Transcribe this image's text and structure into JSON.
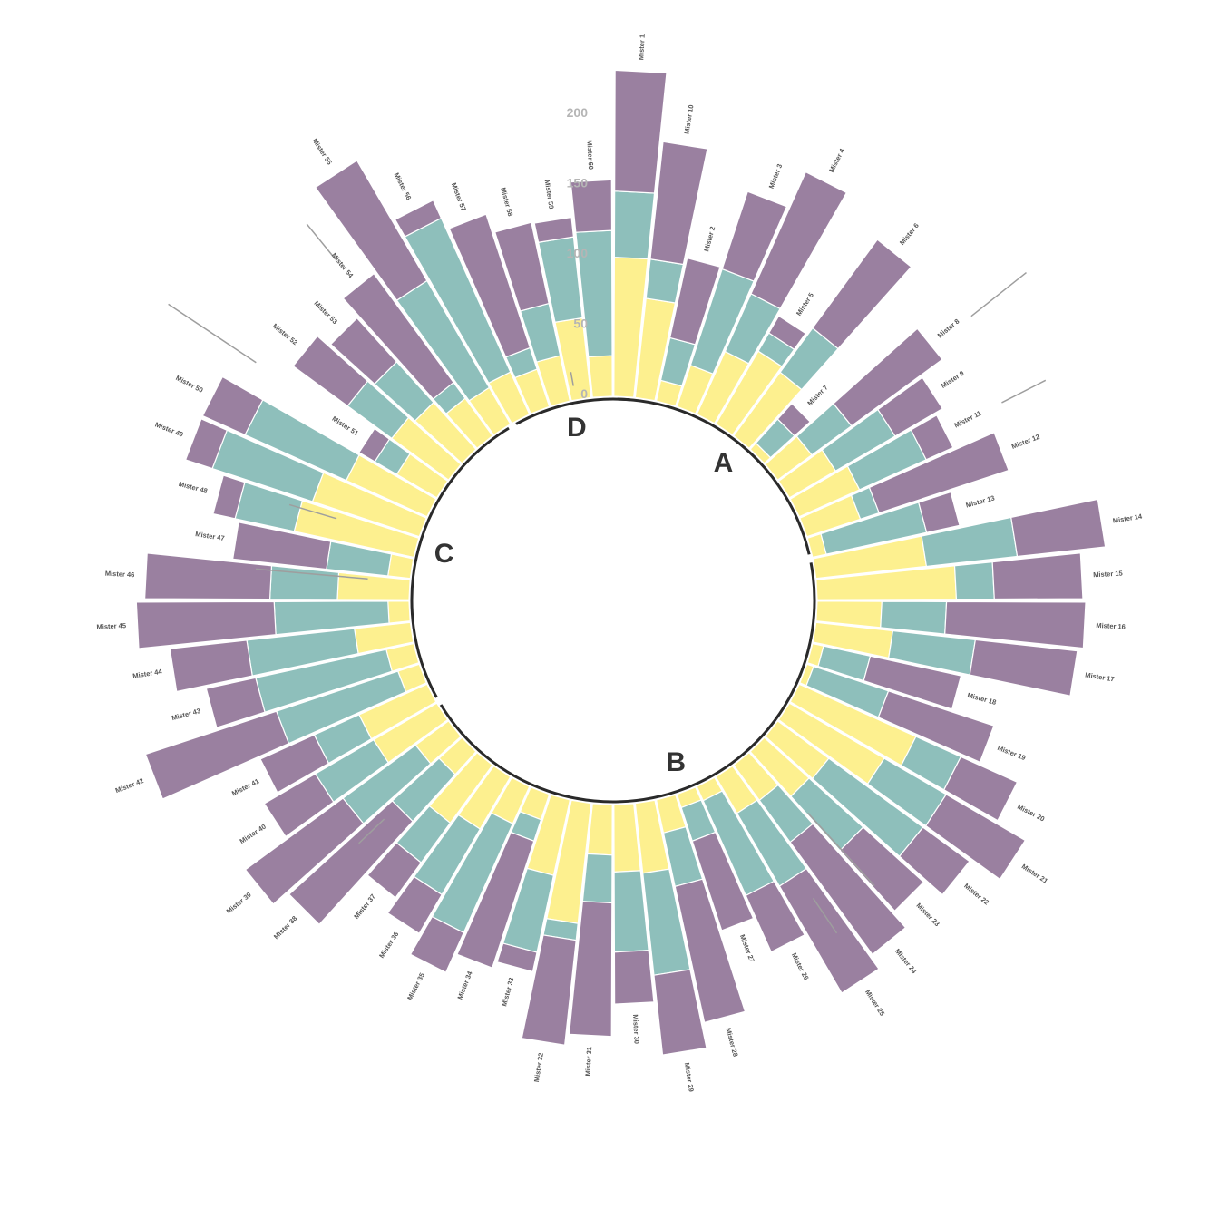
{
  "chart_data": {
    "type": "stacked-circular-bar",
    "series": [
      {
        "name": "",
        "color": "#fdf08f"
      },
      {
        "name": "",
        "color": "#8ebfbb"
      },
      {
        "name": "",
        "color": "#9a80a0"
      }
    ],
    "ticks": [
      "0",
      "50",
      "100",
      "150",
      "200"
    ],
    "groups": [
      {
        "name": "A",
        "start": 1,
        "end": 13
      },
      {
        "name": "B",
        "start": 14,
        "end": 40
      },
      {
        "name": "C",
        "start": 41,
        "end": 55
      },
      {
        "name": "D",
        "start": 56,
        "end": 61
      }
    ],
    "individuals": [
      {
        "label": "Mister 1",
        "values": [
          99,
          47,
          86
        ]
      },
      {
        "label": "Mister 10",
        "values": [
          71,
          28,
          84
        ]
      },
      {
        "label": "Mister 2",
        "values": [
          15,
          31,
          58
        ]
      },
      {
        "label": "Mister 3",
        "values": [
          31,
          72,
          58
        ]
      },
      {
        "label": "Mister 4",
        "values": [
          49,
          45,
          95
        ]
      },
      {
        "label": "Mister 5",
        "values": [
          60,
          15,
          14
        ]
      },
      {
        "label": "Mister 6",
        "values": [
          56,
          39,
          78
        ]
      },
      {
        "label": "Mister 7",
        "values": [
          6,
          23,
          15
        ]
      },
      {
        "label": "Mister 8",
        "values": [
          30,
          35,
          80
        ]
      },
      {
        "label": "Mister 9",
        "values": [
          38,
          49,
          39
        ]
      },
      {
        "label": "Mister 11",
        "values": [
          47,
          52,
          21
        ]
      },
      {
        "label": "Mister 12",
        "values": [
          40,
          14,
          97
        ]
      },
      {
        "label": "Mister 13",
        "values": [
          10,
          73,
          24
        ]
      },
      {
        "label": "Mister 14",
        "values": [
          79,
          65,
          63
        ]
      },
      {
        "label": "Mister 15",
        "values": [
          99,
          27,
          63
        ]
      },
      {
        "label": "Mister 16",
        "values": [
          46,
          46,
          99
        ]
      },
      {
        "label": "Mister 17",
        "values": [
          55,
          59,
          73
        ]
      },
      {
        "label": "Mister 18",
        "values": [
          8,
          34,
          66
        ]
      },
      {
        "label": "Mister 19",
        "values": [
          5,
          56,
          79
        ]
      },
      {
        "label": "Mister 20",
        "values": [
          91,
          35,
          44
        ]
      },
      {
        "label": "Mister 21",
        "values": [
          78,
          51,
          65
        ]
      },
      {
        "label": "Mister 22",
        "values": [
          45,
          83,
          41
        ]
      },
      {
        "label": "Mister 23",
        "values": [
          43,
          52,
          58
        ]
      },
      {
        "label": "Mister 24",
        "values": [
          31,
          37,
          99
        ]
      },
      {
        "label": "Mister 25",
        "values": [
          30,
          60,
          88
        ]
      },
      {
        "label": "Mister 26",
        "values": [
          11,
          74,
          44
        ]
      },
      {
        "label": "Mister 27",
        "values": [
          10,
          25,
          67
        ]
      },
      {
        "label": "Mister 28",
        "values": [
          24,
          39,
          99
        ]
      },
      {
        "label": "Mister 29",
        "values": [
          50,
          73,
          57
        ]
      },
      {
        "label": "Mister 30",
        "values": [
          48,
          57,
          37
        ]
      },
      {
        "label": "Mister 31",
        "values": [
          36,
          34,
          95
        ]
      },
      {
        "label": "Mister 32",
        "values": [
          86,
          12,
          75
        ]
      },
      {
        "label": "Mister 33",
        "values": [
          55,
          56,
          14
        ]
      },
      {
        "label": "Mister 34",
        "values": [
          19,
          16,
          95
        ]
      },
      {
        "label": "Mister 35",
        "values": [
          29,
          85,
          31
        ]
      },
      {
        "label": "Mister 36",
        "values": [
          43,
          54,
          32
        ]
      },
      {
        "label": "Mister 37",
        "values": [
          51,
          35,
          31
        ]
      },
      {
        "label": "Mister 38",
        "values": [
          22,
          45,
          99
        ]
      },
      {
        "label": "Mister 39",
        "values": [
          29,
          64,
          86
        ]
      },
      {
        "label": "Mister 40",
        "values": [
          52,
          48,
          42
        ]
      },
      {
        "label": "Mister 41",
        "values": [
          53,
          35,
          42
        ]
      },
      {
        "label": "Mister 42",
        "values": [
          16,
          91,
          98
        ]
      },
      {
        "label": "Mister 43",
        "values": [
          20,
          95,
          36
        ]
      },
      {
        "label": "Mister 44",
        "values": [
          40,
          77,
          55
        ]
      },
      {
        "label": "Mister 45",
        "values": [
          15,
          81,
          98
        ]
      },
      {
        "label": "Mister 46",
        "values": [
          51,
          48,
          89
        ]
      },
      {
        "label": "Mister 47",
        "values": [
          16,
          44,
          67
        ]
      },
      {
        "label": "Mister 48",
        "values": [
          87,
          43,
          16
        ]
      },
      {
        "label": "Mister 49",
        "values": [
          80,
          75,
          20
        ]
      },
      {
        "label": "Mister 50",
        "values": [
          63,
          79,
          33
        ]
      },
      {
        "label": "Mister 51",
        "values": [
          33,
          18,
          13
        ]
      },
      {
        "label": "Mister 52",
        "values": [
          50,
          39,
          48
        ]
      },
      {
        "label": "Mister 53",
        "values": [
          45,
          39,
          42
        ]
      },
      {
        "label": "Mister 54",
        "values": [
          33,
          14,
          96
        ]
      },
      {
        "label": "Mister 55",
        "values": [
          30,
          88,
          99
        ]
      },
      {
        "label": "Mister 56",
        "values": [
          33,
          120,
          14
        ]
      },
      {
        "label": "Mister 57",
        "values": [
          28,
          16,
          100
        ]
      },
      {
        "label": "Mister 58",
        "values": [
          33,
          38,
          59
        ]
      },
      {
        "label": "Mister 59",
        "values": [
          57,
          58,
          14
        ]
      },
      {
        "label": "Mister 60",
        "values": [
          29,
          89,
          36
        ]
      }
    ]
  }
}
